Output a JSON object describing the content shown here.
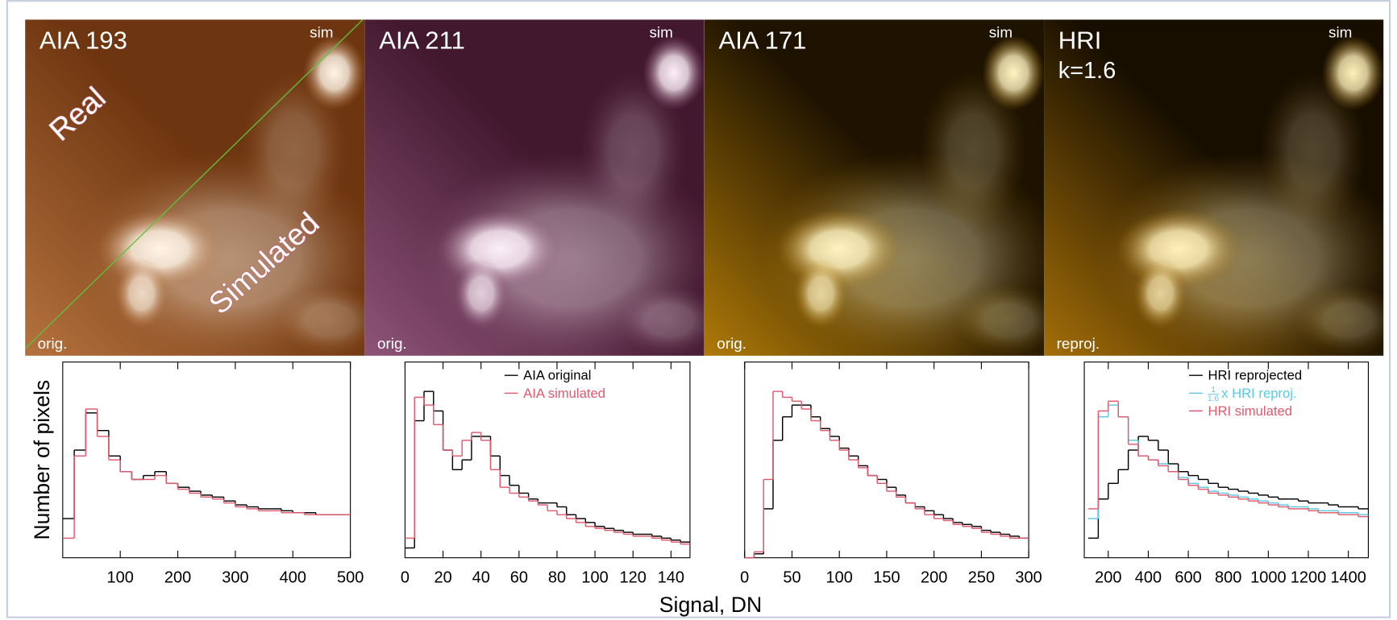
{
  "image_panels": [
    {
      "title": "AIA 193",
      "corner_label": "sim",
      "bottom_label": "orig.",
      "diagonal_labels": [
        "Real",
        "Simulated"
      ]
    },
    {
      "title": "AIA 211",
      "corner_label": "sim",
      "bottom_label": "orig."
    },
    {
      "title": "AIA 171",
      "corner_label": "sim",
      "bottom_label": "orig."
    },
    {
      "title": "HRI",
      "subtitle": "k=1.6",
      "corner_label": "sim",
      "bottom_label": "reproj."
    }
  ],
  "figure_labels": {
    "ylabel": "Number of pixels",
    "xlabel": "Signal, DN"
  },
  "chart_data": [
    {
      "type": "histogram",
      "xlim": [
        0,
        500
      ],
      "ylim": [
        0,
        100
      ],
      "xticks": [
        100,
        200,
        300,
        400,
        500
      ],
      "bins": [
        0,
        20,
        40,
        60,
        80,
        100,
        120,
        140,
        160,
        180,
        200,
        220,
        240,
        260,
        280,
        300,
        320,
        340,
        360,
        380,
        400,
        420,
        440,
        460,
        480,
        500
      ],
      "series": [
        {
          "color": "#000000",
          "values": [
            20,
            55,
            74,
            65,
            52,
            44,
            40,
            42,
            44,
            38,
            36,
            34,
            32,
            31,
            29,
            27,
            26,
            25,
            25,
            24,
            23,
            23,
            22,
            22,
            22
          ]
        },
        {
          "color": "#e05a6e",
          "values": [
            10,
            52,
            76,
            62,
            50,
            44,
            40,
            40,
            42,
            38,
            35,
            33,
            31,
            30,
            28,
            26,
            25,
            24,
            24,
            23,
            23,
            22,
            22,
            22,
            22
          ]
        }
      ]
    },
    {
      "type": "histogram",
      "xlim": [
        0,
        150
      ],
      "ylim": [
        0,
        100
      ],
      "xticks": [
        0,
        20,
        40,
        60,
        80,
        100,
        120,
        140
      ],
      "legend": "top",
      "bins": [
        0,
        5,
        10,
        15,
        20,
        25,
        30,
        35,
        40,
        45,
        50,
        55,
        60,
        65,
        70,
        75,
        80,
        85,
        90,
        95,
        100,
        105,
        110,
        115,
        120,
        125,
        130,
        135,
        140,
        145,
        150
      ],
      "series": [
        {
          "name": "AIA original",
          "color": "#000000",
          "values": [
            5,
            70,
            85,
            75,
            55,
            45,
            50,
            62,
            62,
            52,
            42,
            37,
            33,
            30,
            28,
            28,
            26,
            22,
            20,
            18,
            16,
            15,
            14,
            13,
            12,
            12,
            11,
            10,
            9,
            8
          ]
        },
        {
          "name": "AIA simulated",
          "color": "#e05a6e",
          "values": [
            10,
            82,
            78,
            68,
            55,
            52,
            60,
            64,
            60,
            45,
            36,
            33,
            31,
            29,
            27,
            24,
            22,
            20,
            18,
            16,
            15,
            14,
            13,
            12,
            11,
            11,
            10,
            9,
            8,
            7
          ]
        }
      ]
    },
    {
      "type": "histogram",
      "xlim": [
        0,
        300
      ],
      "ylim": [
        0,
        100
      ],
      "xticks": [
        0,
        50,
        100,
        150,
        200,
        250,
        300
      ],
      "bins": [
        0,
        10,
        20,
        30,
        40,
        50,
        60,
        70,
        80,
        90,
        100,
        110,
        120,
        130,
        140,
        150,
        160,
        170,
        180,
        190,
        200,
        210,
        220,
        230,
        240,
        250,
        260,
        270,
        280,
        290,
        300
      ],
      "series": [
        {
          "color": "#000000",
          "values": [
            0,
            2,
            25,
            60,
            72,
            78,
            78,
            72,
            66,
            62,
            56,
            52,
            47,
            42,
            40,
            36,
            32,
            28,
            26,
            24,
            22,
            20,
            18,
            17,
            16,
            14,
            13,
            12,
            11,
            10
          ]
        },
        {
          "color": "#e05a6e",
          "values": [
            0,
            3,
            40,
            85,
            82,
            80,
            76,
            70,
            65,
            60,
            55,
            50,
            46,
            42,
            38,
            34,
            31,
            28,
            25,
            22,
            20,
            19,
            17,
            16,
            15,
            13,
            12,
            11,
            10,
            10
          ]
        }
      ]
    },
    {
      "type": "histogram",
      "xlim": [
        80,
        1500
      ],
      "ylim": [
        0,
        100
      ],
      "xticks": [
        200,
        400,
        600,
        800,
        1000,
        1200,
        1400
      ],
      "legend": "top-right",
      "bins": [
        100,
        150,
        200,
        250,
        300,
        350,
        400,
        450,
        500,
        550,
        600,
        650,
        700,
        750,
        800,
        850,
        900,
        950,
        1000,
        1050,
        1100,
        1150,
        1200,
        1250,
        1300,
        1350,
        1400,
        1450,
        1500
      ],
      "series": [
        {
          "name": "HRI reprojected",
          "color": "#000000",
          "values": [
            10,
            30,
            38,
            45,
            55,
            62,
            60,
            55,
            48,
            44,
            42,
            40,
            38,
            36,
            35,
            34,
            33,
            32,
            31,
            30,
            30,
            29,
            28,
            28,
            27,
            26,
            26,
            25
          ]
        },
        {
          "name": "x HRI reproj.",
          "scale_numerator": "1",
          "scale_denominator": "1.6",
          "color": "#5bc8e6",
          "values": [
            20,
            72,
            78,
            72,
            60,
            52,
            50,
            48,
            44,
            41,
            38,
            36,
            34,
            33,
            32,
            31,
            30,
            29,
            28,
            27,
            26,
            26,
            25,
            24,
            24,
            23,
            23,
            22
          ]
        },
        {
          "name": "HRI simulated",
          "color": "#e05a6e",
          "values": [
            25,
            75,
            80,
            72,
            58,
            52,
            50,
            47,
            44,
            40,
            37,
            35,
            33,
            32,
            31,
            30,
            29,
            28,
            27,
            26,
            25,
            25,
            24,
            23,
            23,
            22,
            22,
            21
          ]
        }
      ]
    }
  ]
}
